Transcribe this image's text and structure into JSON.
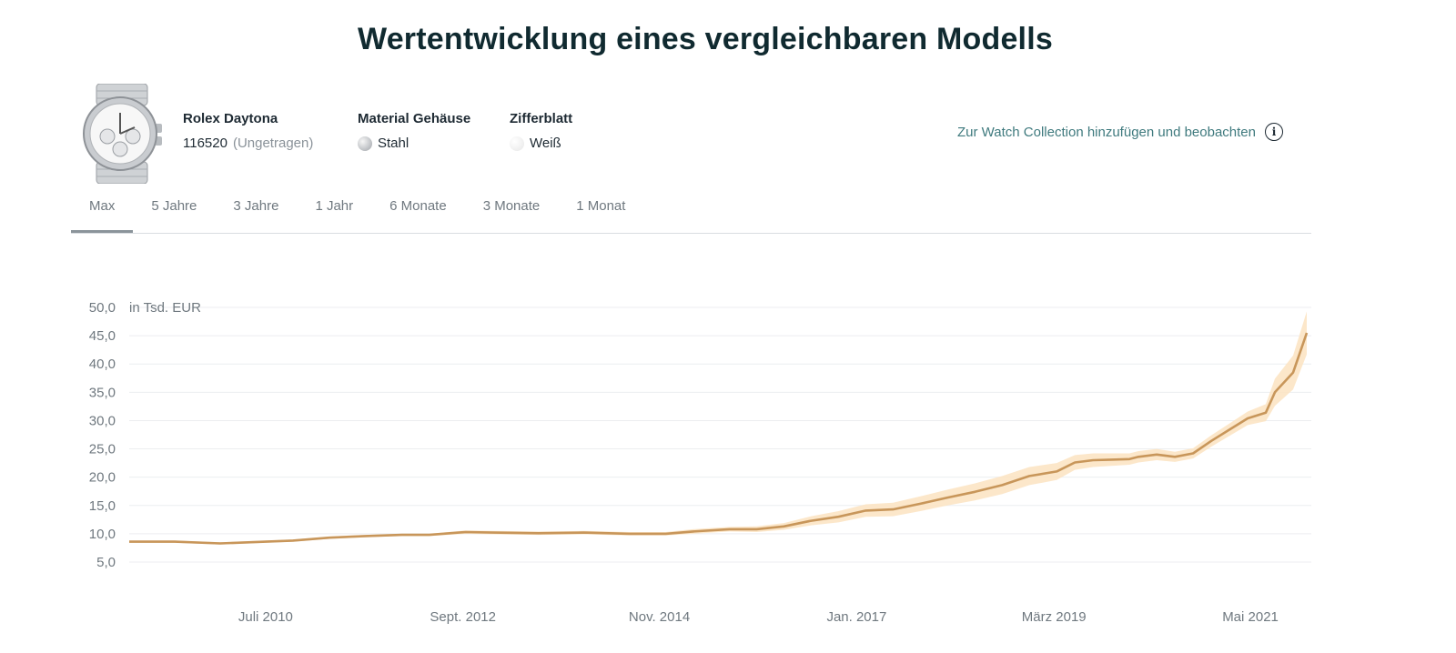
{
  "page_title": "Wertentwicklung eines vergleichbaren Modells",
  "watch": {
    "image_icon": "watch-photo",
    "name": "Rolex Daytona",
    "reference": "116520",
    "condition": "(Ungetragen)"
  },
  "material": {
    "label": "Material Gehäuse",
    "value": "Stahl",
    "swatch_color": "#c2c4c7"
  },
  "dial": {
    "label": "Zifferblatt",
    "value": "Weiß",
    "swatch_color": "#eeeeee"
  },
  "collection_link": {
    "label": "Zur Watch Collection hinzufügen und beobachten",
    "icon": "info-icon"
  },
  "tabs": [
    {
      "label": "Max",
      "active": true
    },
    {
      "label": "5 Jahre",
      "active": false
    },
    {
      "label": "3 Jahre",
      "active": false
    },
    {
      "label": "1 Jahr",
      "active": false
    },
    {
      "label": "6 Monate",
      "active": false
    },
    {
      "label": "3 Monate",
      "active": false
    },
    {
      "label": "1 Monat",
      "active": false
    }
  ],
  "colors": {
    "line": "#c8965a",
    "band": "#fbe3c1",
    "grid": "#eceef0",
    "text": "#6f787f",
    "accent": "#3f7a7e"
  },
  "chart_data": {
    "type": "area",
    "title": "",
    "ylabel": "in Tsd. EUR",
    "xlabel": "",
    "ylim": [
      5,
      50
    ],
    "y_ticks": [
      "50,0",
      "45,0",
      "40,0",
      "35,0",
      "30,0",
      "25,0",
      "20,0",
      "15,0",
      "10,0",
      "5,0"
    ],
    "y_tick_values": [
      50,
      45,
      40,
      35,
      30,
      25,
      20,
      15,
      10,
      5
    ],
    "xlim": [
      2009.0,
      2022.0
    ],
    "x_ticks": [
      {
        "label": "Juli 2010",
        "x": 2010.5
      },
      {
        "label": "Sept. 2012",
        "x": 2012.67
      },
      {
        "label": "Nov. 2014",
        "x": 2014.83
      },
      {
        "label": "Jan. 2017",
        "x": 2017.0
      },
      {
        "label": "März 2019",
        "x": 2019.17
      },
      {
        "label": "Mai 2021",
        "x": 2021.33
      }
    ],
    "series": [
      {
        "name": "Rolex Daytona 116520",
        "x": [
          2009.0,
          2009.5,
          2010.0,
          2010.5,
          2010.8,
          2011.2,
          2011.6,
          2012.0,
          2012.3,
          2012.7,
          2013.0,
          2013.5,
          2014.0,
          2014.5,
          2014.9,
          2015.2,
          2015.6,
          2015.9,
          2016.2,
          2016.5,
          2016.8,
          2017.1,
          2017.4,
          2017.7,
          2018.0,
          2018.3,
          2018.6,
          2018.9,
          2019.2,
          2019.4,
          2019.6,
          2019.8,
          2020.0,
          2020.1,
          2020.3,
          2020.5,
          2020.7,
          2020.9,
          2021.1,
          2021.3,
          2021.5,
          2021.6,
          2021.8,
          2021.95
        ],
        "values": [
          8.6,
          8.6,
          8.3,
          8.6,
          8.8,
          9.3,
          9.6,
          9.8,
          9.8,
          10.3,
          10.2,
          10.1,
          10.2,
          10.0,
          10.0,
          10.4,
          10.8,
          10.8,
          11.3,
          12.3,
          13.0,
          14.1,
          14.3,
          15.3,
          16.4,
          17.4,
          18.6,
          20.2,
          21.0,
          22.6,
          23.0,
          23.1,
          23.2,
          23.6,
          24.0,
          23.6,
          24.2,
          26.4,
          28.4,
          30.4,
          31.4,
          35.0,
          38.5,
          45.5
        ],
        "band_half_width": [
          0.2,
          0.2,
          0.2,
          0.2,
          0.2,
          0.2,
          0.2,
          0.2,
          0.2,
          0.3,
          0.3,
          0.3,
          0.3,
          0.3,
          0.3,
          0.4,
          0.4,
          0.5,
          0.6,
          0.8,
          1.0,
          1.1,
          1.2,
          1.3,
          1.4,
          1.5,
          1.6,
          1.6,
          1.5,
          1.3,
          1.2,
          1.1,
          1.0,
          1.0,
          1.0,
          0.9,
          0.9,
          1.0,
          1.1,
          1.2,
          1.5,
          2.4,
          3.0,
          3.8
        ]
      }
    ]
  }
}
